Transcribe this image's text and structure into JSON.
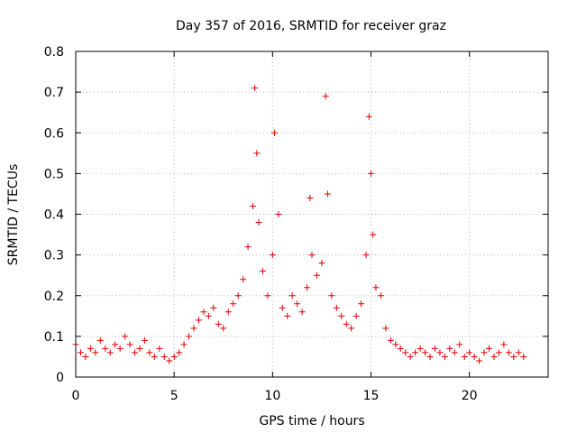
{
  "chart_data": {
    "type": "scatter",
    "title": "Day 357 of 2016, SRMTID for receiver graz",
    "xlabel": "GPS time / hours",
    "ylabel": "SRMTID / TECUs",
    "xlim": [
      0,
      24
    ],
    "ylim": [
      0,
      0.8
    ],
    "xticks": [
      0,
      5,
      10,
      15,
      20
    ],
    "yticks": [
      0,
      0.1,
      0.2,
      0.3,
      0.4,
      0.5,
      0.6,
      0.7,
      0.8
    ],
    "xtick_labels": [
      "0",
      "5",
      "10",
      "15",
      "20"
    ],
    "ytick_labels": [
      "0",
      "0.1",
      "0.2",
      "0.3",
      "0.4",
      "0.5",
      "0.6",
      "0.7",
      "0.8"
    ],
    "grid": true,
    "marker": "+",
    "series": [
      {
        "name": "SRMTID",
        "color": "#e00000",
        "x": [
          0.0,
          0.25,
          0.5,
          0.75,
          1.0,
          1.25,
          1.5,
          1.75,
          2.0,
          2.25,
          2.5,
          2.75,
          3.0,
          3.25,
          3.5,
          3.75,
          4.0,
          4.25,
          4.5,
          4.75,
          5.0,
          5.25,
          5.5,
          5.75,
          6.0,
          6.25,
          6.5,
          6.75,
          7.0,
          7.25,
          7.5,
          7.75,
          8.0,
          8.25,
          8.5,
          8.75,
          9.0,
          9.1,
          9.2,
          9.3,
          9.5,
          9.75,
          10.0,
          10.1,
          10.3,
          10.5,
          10.75,
          11.0,
          11.25,
          11.5,
          11.75,
          11.9,
          12.0,
          12.25,
          12.5,
          12.7,
          12.8,
          13.0,
          13.25,
          13.5,
          13.75,
          14.0,
          14.25,
          14.5,
          14.75,
          14.9,
          15.0,
          15.1,
          15.25,
          15.5,
          15.75,
          16.0,
          16.25,
          16.5,
          16.75,
          17.0,
          17.25,
          17.5,
          17.75,
          18.0,
          18.25,
          18.5,
          18.75,
          19.0,
          19.25,
          19.5,
          19.75,
          20.0,
          20.25,
          20.5,
          20.75,
          21.0,
          21.25,
          21.5,
          21.75,
          22.0,
          22.25,
          22.5,
          22.75
        ],
        "y": [
          0.08,
          0.06,
          0.05,
          0.07,
          0.06,
          0.09,
          0.07,
          0.06,
          0.08,
          0.07,
          0.1,
          0.08,
          0.06,
          0.07,
          0.09,
          0.06,
          0.05,
          0.07,
          0.05,
          0.04,
          0.05,
          0.06,
          0.08,
          0.1,
          0.12,
          0.14,
          0.16,
          0.15,
          0.17,
          0.13,
          0.12,
          0.16,
          0.18,
          0.2,
          0.24,
          0.32,
          0.42,
          0.71,
          0.55,
          0.38,
          0.26,
          0.2,
          0.3,
          0.6,
          0.4,
          0.17,
          0.15,
          0.2,
          0.18,
          0.16,
          0.22,
          0.44,
          0.3,
          0.25,
          0.28,
          0.69,
          0.45,
          0.2,
          0.17,
          0.15,
          0.13,
          0.12,
          0.15,
          0.18,
          0.3,
          0.64,
          0.5,
          0.35,
          0.22,
          0.2,
          0.12,
          0.09,
          0.08,
          0.07,
          0.06,
          0.05,
          0.06,
          0.07,
          0.06,
          0.05,
          0.07,
          0.06,
          0.05,
          0.07,
          0.06,
          0.08,
          0.05,
          0.06,
          0.05,
          0.04,
          0.06,
          0.07,
          0.05,
          0.06,
          0.08,
          0.06,
          0.05,
          0.06,
          0.05
        ]
      }
    ]
  }
}
